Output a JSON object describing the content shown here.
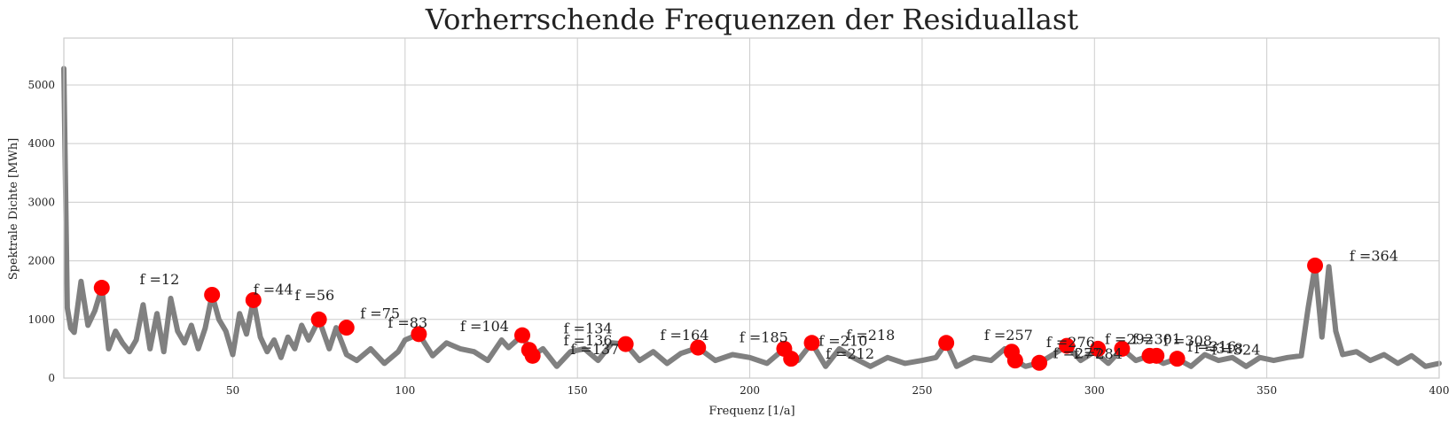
{
  "chart_data": {
    "type": "line",
    "title": "Vorherrschende Frequenzen der Residuallast",
    "xlabel": "Frequenz [1/a]",
    "ylabel": "Spektrale Dichte [MWh]",
    "xlim": [
      1,
      400
    ],
    "ylim": [
      0,
      5800
    ],
    "xticks": [
      50,
      100,
      150,
      200,
      250,
      300,
      350,
      400
    ],
    "yticks": [
      0,
      1000,
      2000,
      3000,
      4000,
      5000
    ],
    "grid": true,
    "colors": {
      "line": "#808080",
      "marker": "#ff0000",
      "grid": "#cccccc",
      "frame": "#cccccc"
    },
    "series": [
      {
        "x": [
          1,
          2,
          3,
          4,
          6,
          8,
          10,
          12,
          14,
          16,
          18,
          20,
          22,
          24,
          26,
          28,
          30,
          32,
          34,
          36,
          38,
          40,
          42,
          44,
          46,
          48,
          50,
          52,
          54,
          56,
          58,
          60,
          62,
          64,
          66,
          68,
          70,
          72,
          75,
          78,
          80,
          83,
          86,
          90,
          94,
          98,
          100,
          104,
          108,
          112,
          116,
          120,
          124,
          128,
          130,
          134,
          137,
          140,
          144,
          148,
          152,
          156,
          160,
          164,
          168,
          172,
          176,
          180,
          185,
          190,
          195,
          200,
          205,
          210,
          214,
          218,
          222,
          226,
          230,
          235,
          240,
          245,
          250,
          254,
          257,
          260,
          265,
          270,
          274,
          277,
          280,
          284,
          288,
          292,
          296,
          300,
          304,
          308,
          312,
          316,
          320,
          324,
          328,
          332,
          336,
          340,
          344,
          348,
          352,
          356,
          360,
          362,
          364,
          366,
          368,
          370,
          372,
          376,
          380,
          384,
          388,
          392,
          396,
          400
        ],
        "y": [
          5280,
          1200,
          850,
          780,
          1650,
          900,
          1150,
          1540,
          500,
          800,
          600,
          450,
          650,
          1250,
          500,
          1100,
          450,
          1360,
          800,
          600,
          900,
          500,
          850,
          1420,
          1000,
          800,
          400,
          1100,
          750,
          1330,
          700,
          450,
          650,
          350,
          700,
          500,
          900,
          650,
          1000,
          500,
          860,
          400,
          300,
          500,
          250,
          450,
          650,
          750,
          380,
          600,
          500,
          450,
          300,
          650,
          520,
          730,
          380,
          500,
          200,
          450,
          500,
          300,
          600,
          580,
          300,
          450,
          250,
          420,
          520,
          300,
          400,
          350,
          250,
          500,
          300,
          600,
          200,
          500,
          350,
          200,
          350,
          250,
          300,
          350,
          600,
          200,
          350,
          300,
          500,
          300,
          200,
          260,
          400,
          550,
          300,
          450,
          250,
          500,
          300,
          380,
          250,
          330,
          200,
          400,
          300,
          350,
          200,
          350,
          300,
          350,
          380,
          1200,
          1920,
          700,
          1900,
          800,
          400,
          450,
          300,
          400,
          250,
          380,
          200,
          250
        ]
      }
    ],
    "peaks": [
      {
        "x": 12,
        "y": 1540,
        "label": "f =12",
        "lx": 23,
        "ly": 1600
      },
      {
        "x": 44,
        "y": 1420,
        "label": "f =44",
        "lx": 56,
        "ly": 1430
      },
      {
        "x": 56,
        "y": 1330,
        "label": "f =56",
        "lx": 68,
        "ly": 1330
      },
      {
        "x": 75,
        "y": 1000,
        "label": "f =75",
        "lx": 87,
        "ly": 1020
      },
      {
        "x": 83,
        "y": 860,
        "label": "f =83",
        "lx": 95,
        "ly": 860
      },
      {
        "x": 104,
        "y": 750,
        "label": "f =104",
        "lx": 116,
        "ly": 800
      },
      {
        "x": 134,
        "y": 730,
        "label": "f =134",
        "lx": 146,
        "ly": 760
      },
      {
        "x": 136,
        "y": 480,
        "label": "f =136",
        "lx": 146,
        "ly": 560
      },
      {
        "x": 137,
        "y": 380,
        "label": "f =137",
        "lx": 148,
        "ly": 410
      },
      {
        "x": 164,
        "y": 580,
        "label": "f =164",
        "lx": 174,
        "ly": 650
      },
      {
        "x": 185,
        "y": 520,
        "label": "f =185",
        "lx": 197,
        "ly": 610
      },
      {
        "x": 210,
        "y": 500,
        "label": "f =210",
        "lx": 220,
        "ly": 550
      },
      {
        "x": 212,
        "y": 330,
        "label": "f =212",
        "lx": 222,
        "ly": 330
      },
      {
        "x": 218,
        "y": 600,
        "label": "f =218",
        "lx": 228,
        "ly": 650
      },
      {
        "x": 257,
        "y": 600,
        "label": "f =257",
        "lx": 268,
        "ly": 650
      },
      {
        "x": 276,
        "y": 450,
        "label": "f =276",
        "lx": 286,
        "ly": 530
      },
      {
        "x": 277,
        "y": 300,
        "label": "f =277",
        "lx": 288,
        "ly": 340
      },
      {
        "x": 284,
        "y": 260,
        "label": "f =284",
        "lx": 294,
        "ly": 330
      },
      {
        "x": 292,
        "y": 550,
        "label": "f =292",
        "lx": 303,
        "ly": 580
      },
      {
        "x": 301,
        "y": 500,
        "label": "f =301",
        "lx": 311,
        "ly": 580
      },
      {
        "x": 308,
        "y": 500,
        "label": "f =308",
        "lx": 320,
        "ly": 550
      },
      {
        "x": 316,
        "y": 380,
        "label": "f =316",
        "lx": 327,
        "ly": 450
      },
      {
        "x": 318,
        "y": 380,
        "label": "f =318",
        "lx": 329,
        "ly": 420
      },
      {
        "x": 324,
        "y": 330,
        "label": "f =324",
        "lx": 334,
        "ly": 400
      },
      {
        "x": 364,
        "y": 1920,
        "label": "f =364",
        "lx": 374,
        "ly": 2000
      }
    ]
  }
}
